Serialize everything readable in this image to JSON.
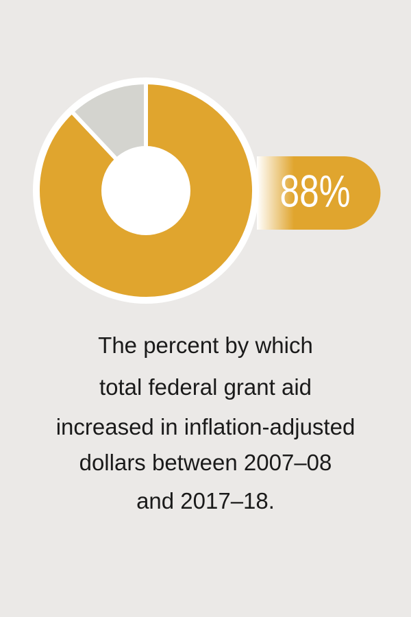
{
  "chart_data": {
    "type": "donut",
    "values": [
      88,
      12
    ],
    "value_labels": [
      "88%",
      null
    ],
    "colors": [
      "#e0a52e",
      "#d4d4cf"
    ],
    "caption": [
      "The percent by which",
      "total federal grant aid",
      "increased in inflation-adjusted",
      "dollars between 2007–08",
      "and 2017–18."
    ]
  }
}
